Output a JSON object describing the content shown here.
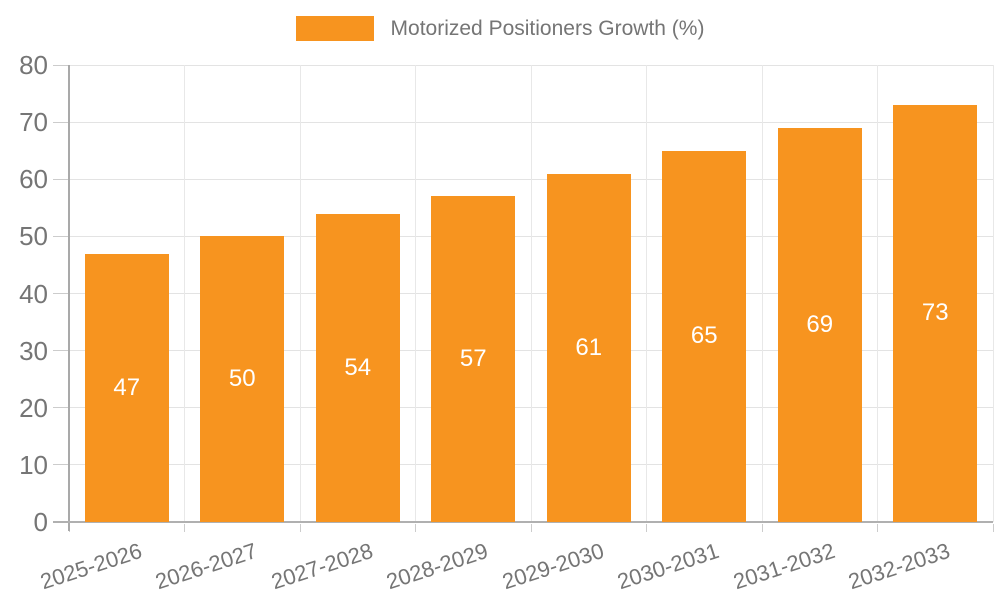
{
  "chart_data": {
    "type": "bar",
    "title": "",
    "legend": "Motorized Positioners Growth (%)",
    "legend_position": "top-center",
    "categories": [
      "2025-2026",
      "2026-2027",
      "2027-2028",
      "2028-2029",
      "2029-2030",
      "2030-2031",
      "2031-2032",
      "2032-2033"
    ],
    "values": [
      47,
      50,
      54,
      57,
      61,
      65,
      69,
      73
    ],
    "bar_value_labels_visible": true,
    "xlabel": "",
    "ylabel": "",
    "ylim": [
      0,
      80
    ],
    "yticks": [
      0,
      10,
      20,
      30,
      40,
      50,
      60,
      70,
      80
    ],
    "grid": "horizontal gridlines plus vertical category-boundary gridlines",
    "x_tick_rotation_deg": -18,
    "colors": {
      "bar": "#f7941f",
      "bar_value_label": "#ffffff",
      "axis_text": "#757575",
      "grid_line": "#e3e3e3",
      "axis_line": "#b0b0b0"
    }
  }
}
